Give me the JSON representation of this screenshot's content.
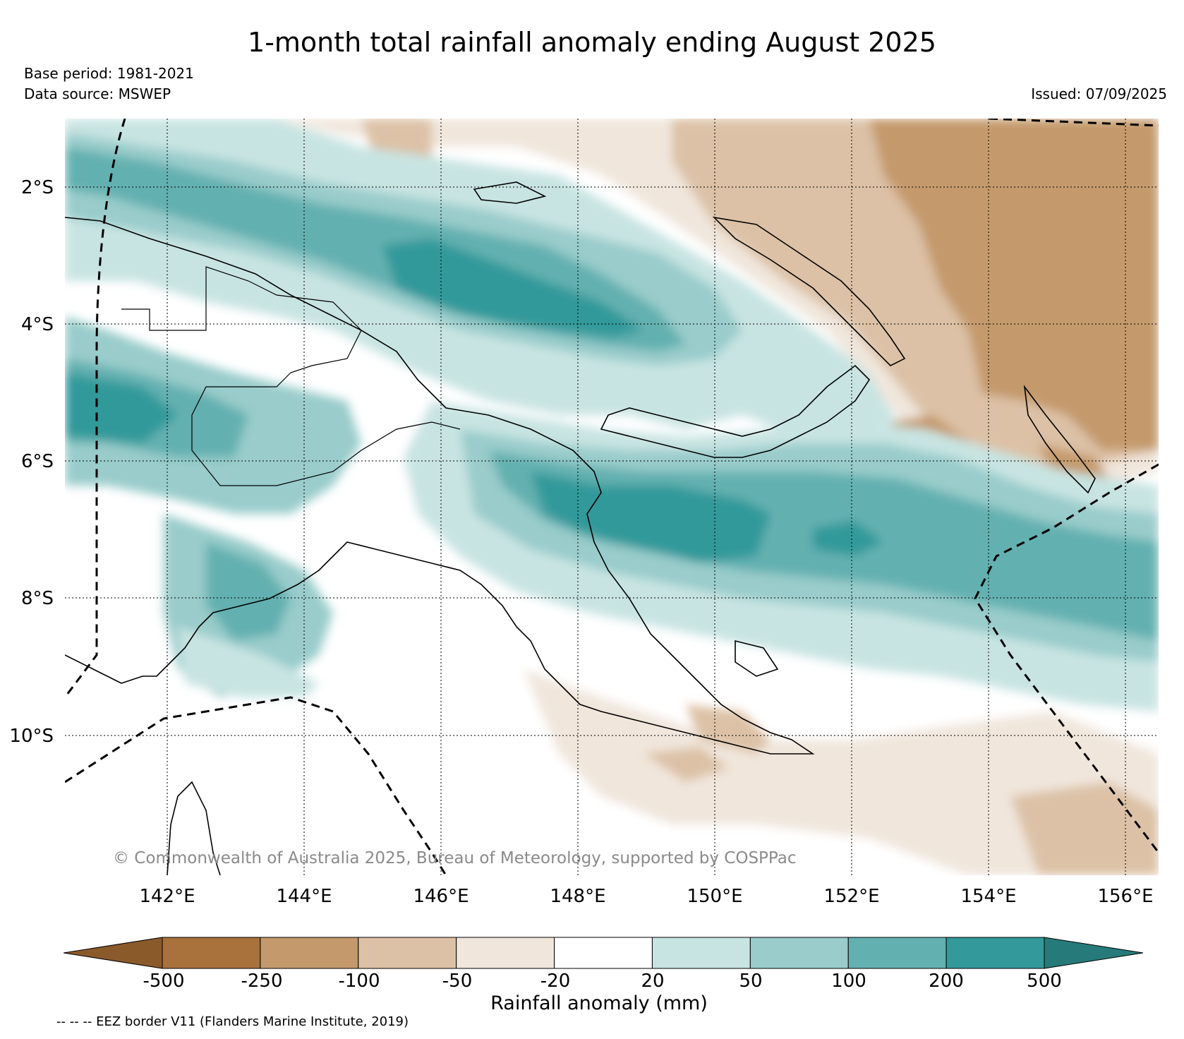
{
  "header": {
    "title": "1-month total rainfall anomaly ending August 2025",
    "base_period": "Base period: 1981-2021",
    "data_source": "Data source: MSWEP",
    "issued": "Issued: 07/09/2025"
  },
  "map": {
    "region": "Papua New Guinea",
    "extent": {
      "lon": [
        140.5,
        156.5
      ],
      "lat": [
        -1.0,
        -12.1
      ]
    },
    "grid": true,
    "lat_labels": [
      "2°S",
      "4°S",
      "6°S",
      "8°S",
      "10°S"
    ],
    "lon_labels": [
      "142°E",
      "144°E",
      "146°E",
      "148°E",
      "150°E",
      "152°E",
      "154°E",
      "156°E"
    ],
    "copyright": "© Commonwealth of Australia 2025, Bureau of Meteorology, supported by COSPPac"
  },
  "colorbar": {
    "label": "Rainfall anomaly (mm)",
    "ticks": [
      "-500",
      "-250",
      "-100",
      "-50",
      "-20",
      "20",
      "50",
      "100",
      "200",
      "500"
    ],
    "colors": [
      "#8b5a2b",
      "#a9713b",
      "#c49a6c",
      "#dcc1a6",
      "#f0e6dc",
      "#ffffff",
      "#c8e4e2",
      "#99cccb",
      "#63b0b0",
      "#33999a",
      "#277a7a"
    ],
    "extend": "both"
  },
  "legend_note": "-- -- -- EEZ border V11 (Flanders Marine Institute, 2019)"
}
